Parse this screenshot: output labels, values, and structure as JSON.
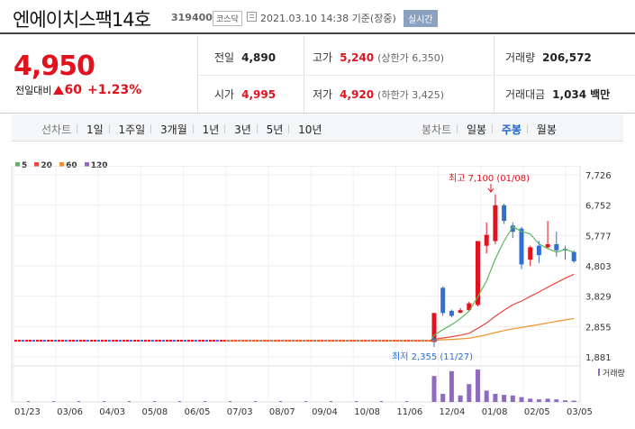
{
  "header": {
    "name": "엔에이치스팩14호",
    "code": "319400",
    "market": "코스닥",
    "datetime": "2021.03.10 14:38 기준(장중)",
    "realtime_label": "실시간"
  },
  "price": {
    "current": "4,950",
    "change_label": "전일대비",
    "change_value": "60",
    "change_pct": "+1.23%"
  },
  "stats": {
    "prev_label": "전일",
    "prev": "4,890",
    "high_label": "고가",
    "high": "5,240",
    "upper_limit": "(상한가 6,350)",
    "volume_label": "거래량",
    "volume": "206,572",
    "open_label": "시가",
    "open": "4,995",
    "low_label": "저가",
    "low": "4,920",
    "lower_limit": "(하한가 3,425)",
    "amount_label": "거래대금",
    "amount": "1,034",
    "amount_unit": "백만"
  },
  "period_bar": {
    "line_label": "선차트",
    "line_periods": [
      "1일",
      "1주일",
      "3개월",
      "1년",
      "3년",
      "5년",
      "10년"
    ],
    "candle_label": "봉차트",
    "candle_periods": [
      "일봉",
      "주봉",
      "월봉"
    ],
    "active_candle": "주봉"
  },
  "colors": {
    "up": "#e1131f",
    "down": "#2f6fd6",
    "ma5": "#5cb85c",
    "ma20": "#e9473f",
    "ma60": "#f0932b",
    "ma120": "#8e6bbf"
  },
  "chart_data": {
    "type": "candlestick",
    "legend": [
      "5",
      "20",
      "60",
      "120"
    ],
    "y_ticks": [
      "7,726",
      "6,752",
      "5,777",
      "4,803",
      "3,829",
      "2,855",
      "1,881"
    ],
    "ylim": [
      1881,
      7726
    ],
    "x_ticks": [
      "01/23",
      "03/06",
      "04/03",
      "05/08",
      "06/05",
      "07/03",
      "08/07",
      "09/04",
      "10/08",
      "11/06",
      "12/04",
      "01/08",
      "02/05",
      "03/05"
    ],
    "volume_label": "거래량",
    "annotations": {
      "high": "최고 7,100 (01/08)",
      "low": "최저 2,355 (11/27)"
    },
    "candles": [
      {
        "o": 2360,
        "c": 3290,
        "h": 3290,
        "l": 2355,
        "vol": 0.8
      },
      {
        "o": 4100,
        "c": 3290,
        "h": 4150,
        "l": 3200,
        "vol": 0.25
      },
      {
        "o": 3360,
        "c": 3200,
        "h": 3400,
        "l": 3150,
        "vol": 0.95
      },
      {
        "o": 3300,
        "c": 3380,
        "h": 3450,
        "l": 3280,
        "vol": 0.2
      },
      {
        "o": 3380,
        "c": 3600,
        "h": 3650,
        "l": 3350,
        "vol": 0.55
      },
      {
        "o": 3550,
        "c": 5600,
        "h": 5600,
        "l": 3500,
        "vol": 1.0
      },
      {
        "o": 5450,
        "c": 5800,
        "h": 6200,
        "l": 5200,
        "vol": 0.35
      },
      {
        "o": 5600,
        "c": 6750,
        "h": 7100,
        "l": 5500,
        "vol": 0.25
      },
      {
        "o": 6750,
        "c": 6250,
        "h": 6800,
        "l": 6150,
        "vol": 0.22
      },
      {
        "o": 6100,
        "c": 5900,
        "h": 6200,
        "l": 5700,
        "vol": 0.2
      },
      {
        "o": 6000,
        "c": 4850,
        "h": 6050,
        "l": 4700,
        "vol": 0.15
      },
      {
        "o": 5000,
        "c": 5400,
        "h": 5450,
        "l": 4800,
        "vol": 0.1
      },
      {
        "o": 5450,
        "c": 5150,
        "h": 5600,
        "l": 4900,
        "vol": 0.08
      },
      {
        "o": 5400,
        "c": 5500,
        "h": 6250,
        "l": 5350,
        "vol": 0.1
      },
      {
        "o": 5500,
        "c": 5300,
        "h": 5900,
        "l": 5100,
        "vol": 0.08
      },
      {
        "o": 5350,
        "c": 5300,
        "h": 5450,
        "l": 5000,
        "vol": 0.05
      },
      {
        "o": 5250,
        "c": 4950,
        "h": 5300,
        "l": 4900,
        "vol": 0.04
      }
    ]
  }
}
